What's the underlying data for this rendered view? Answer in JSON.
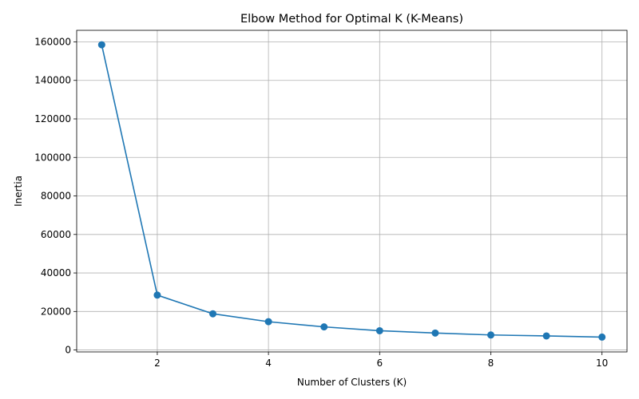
{
  "chart_data": {
    "type": "line",
    "title": "Elbow Method for Optimal K (K-Means)",
    "xlabel": "Number of Clusters (K)",
    "ylabel": "Inertia",
    "x": [
      1,
      2,
      3,
      4,
      5,
      6,
      7,
      8,
      9,
      10
    ],
    "series": [
      {
        "values": [
          158500,
          28500,
          18800,
          14700,
          12000,
          10000,
          8800,
          7800,
          7300,
          6700
        ],
        "color": "#1f77b4",
        "marker": "circle"
      }
    ],
    "xlim": [
      0.55,
      10.45
    ],
    "ylim": [
      -1000,
      166000
    ],
    "xticks": [
      2,
      4,
      6,
      8,
      10
    ],
    "yticks": [
      0,
      20000,
      40000,
      60000,
      80000,
      100000,
      120000,
      140000,
      160000
    ],
    "xtick_labels": [
      "2",
      "4",
      "6",
      "8",
      "10"
    ],
    "ytick_labels": [
      "0",
      "20000",
      "40000",
      "60000",
      "80000",
      "100000",
      "120000",
      "140000",
      "160000"
    ],
    "grid": true,
    "legend": "none",
    "frame_color": "#000000",
    "grid_color": "#b0b0b0"
  }
}
